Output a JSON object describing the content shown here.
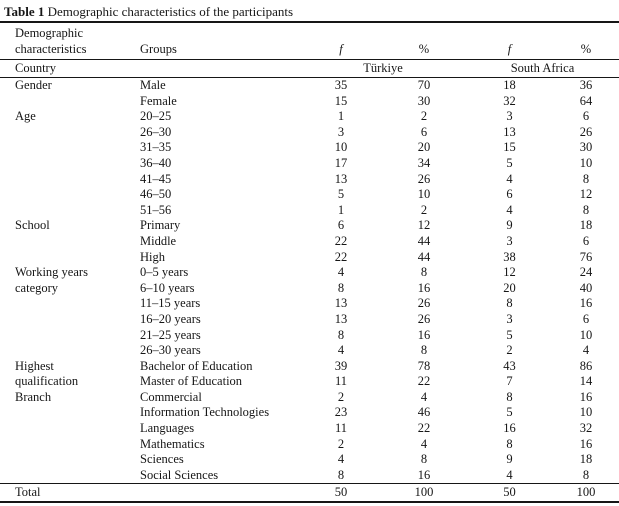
{
  "title": {
    "label": "Table 1",
    "text": "Demographic characteristics of the participants"
  },
  "columns": {
    "characteristic_line1": "Demographic",
    "characteristic_line2": "characteristics",
    "groups": "Groups",
    "f1": "f",
    "pct1": "%",
    "f2": "f",
    "pct2": "%"
  },
  "country_row": {
    "label": "Country",
    "country1": "Türkiye",
    "country2": "South Africa"
  },
  "rows": [
    {
      "characteristic": "Gender",
      "group": "Male",
      "f1": 35,
      "pct1": 70,
      "f2": 18,
      "pct2": 36
    },
    {
      "characteristic": "",
      "group": "Female",
      "f1": 15,
      "pct1": 30,
      "f2": 32,
      "pct2": 64
    },
    {
      "characteristic": "Age",
      "group": "20–25",
      "f1": 1,
      "pct1": 2,
      "f2": 3,
      "pct2": 6
    },
    {
      "characteristic": "",
      "group": "26–30",
      "f1": 3,
      "pct1": 6,
      "f2": 13,
      "pct2": 26
    },
    {
      "characteristic": "",
      "group": "31–35",
      "f1": 10,
      "pct1": 20,
      "f2": 15,
      "pct2": 30
    },
    {
      "characteristic": "",
      "group": "36–40",
      "f1": 17,
      "pct1": 34,
      "f2": 5,
      "pct2": 10
    },
    {
      "characteristic": "",
      "group": "41–45",
      "f1": 13,
      "pct1": 26,
      "f2": 4,
      "pct2": 8
    },
    {
      "characteristic": "",
      "group": "46–50",
      "f1": 5,
      "pct1": 10,
      "f2": 6,
      "pct2": 12
    },
    {
      "characteristic": "",
      "group": "51–56",
      "f1": 1,
      "pct1": 2,
      "f2": 4,
      "pct2": 8
    },
    {
      "characteristic": "School",
      "group": "Primary",
      "f1": 6,
      "pct1": 12,
      "f2": 9,
      "pct2": 18
    },
    {
      "characteristic": "",
      "group": "Middle",
      "f1": 22,
      "pct1": 44,
      "f2": 3,
      "pct2": 6
    },
    {
      "characteristic": "",
      "group": "High",
      "f1": 22,
      "pct1": 44,
      "f2": 38,
      "pct2": 76
    },
    {
      "characteristic": "Working years",
      "group": "0–5 years",
      "f1": 4,
      "pct1": 8,
      "f2": 12,
      "pct2": 24
    },
    {
      "characteristic": "category",
      "group": "6–10 years",
      "f1": 8,
      "pct1": 16,
      "f2": 20,
      "pct2": 40
    },
    {
      "characteristic": "",
      "group": "11–15 years",
      "f1": 13,
      "pct1": 26,
      "f2": 8,
      "pct2": 16
    },
    {
      "characteristic": "",
      "group": "16–20 years",
      "f1": 13,
      "pct1": 26,
      "f2": 3,
      "pct2": 6
    },
    {
      "characteristic": "",
      "group": "21–25 years",
      "f1": 8,
      "pct1": 16,
      "f2": 5,
      "pct2": 10
    },
    {
      "characteristic": "",
      "group": "26–30 years",
      "f1": 4,
      "pct1": 8,
      "f2": 2,
      "pct2": 4
    },
    {
      "characteristic": "Highest",
      "group": "Bachelor of Education",
      "f1": 39,
      "pct1": 78,
      "f2": 43,
      "pct2": 86
    },
    {
      "characteristic": "qualification",
      "group": "Master of Education",
      "f1": 11,
      "pct1": 22,
      "f2": 7,
      "pct2": 14
    },
    {
      "characteristic": "Branch",
      "group": "Commercial",
      "f1": 2,
      "pct1": 4,
      "f2": 8,
      "pct2": 16
    },
    {
      "characteristic": "",
      "group": "Information Technologies",
      "f1": 23,
      "pct1": 46,
      "f2": 5,
      "pct2": 10
    },
    {
      "characteristic": "",
      "group": "Languages",
      "f1": 11,
      "pct1": 22,
      "f2": 16,
      "pct2": 32
    },
    {
      "characteristic": "",
      "group": "Mathematics",
      "f1": 2,
      "pct1": 4,
      "f2": 8,
      "pct2": 16
    },
    {
      "characteristic": "",
      "group": "Sciences",
      "f1": 4,
      "pct1": 8,
      "f2": 9,
      "pct2": 18
    },
    {
      "characteristic": "",
      "group": "Social Sciences",
      "f1": 8,
      "pct1": 16,
      "f2": 4,
      "pct2": 8
    }
  ],
  "total": {
    "label": "Total",
    "f1": 50,
    "pct1": 100,
    "f2": 50,
    "pct2": 100
  }
}
